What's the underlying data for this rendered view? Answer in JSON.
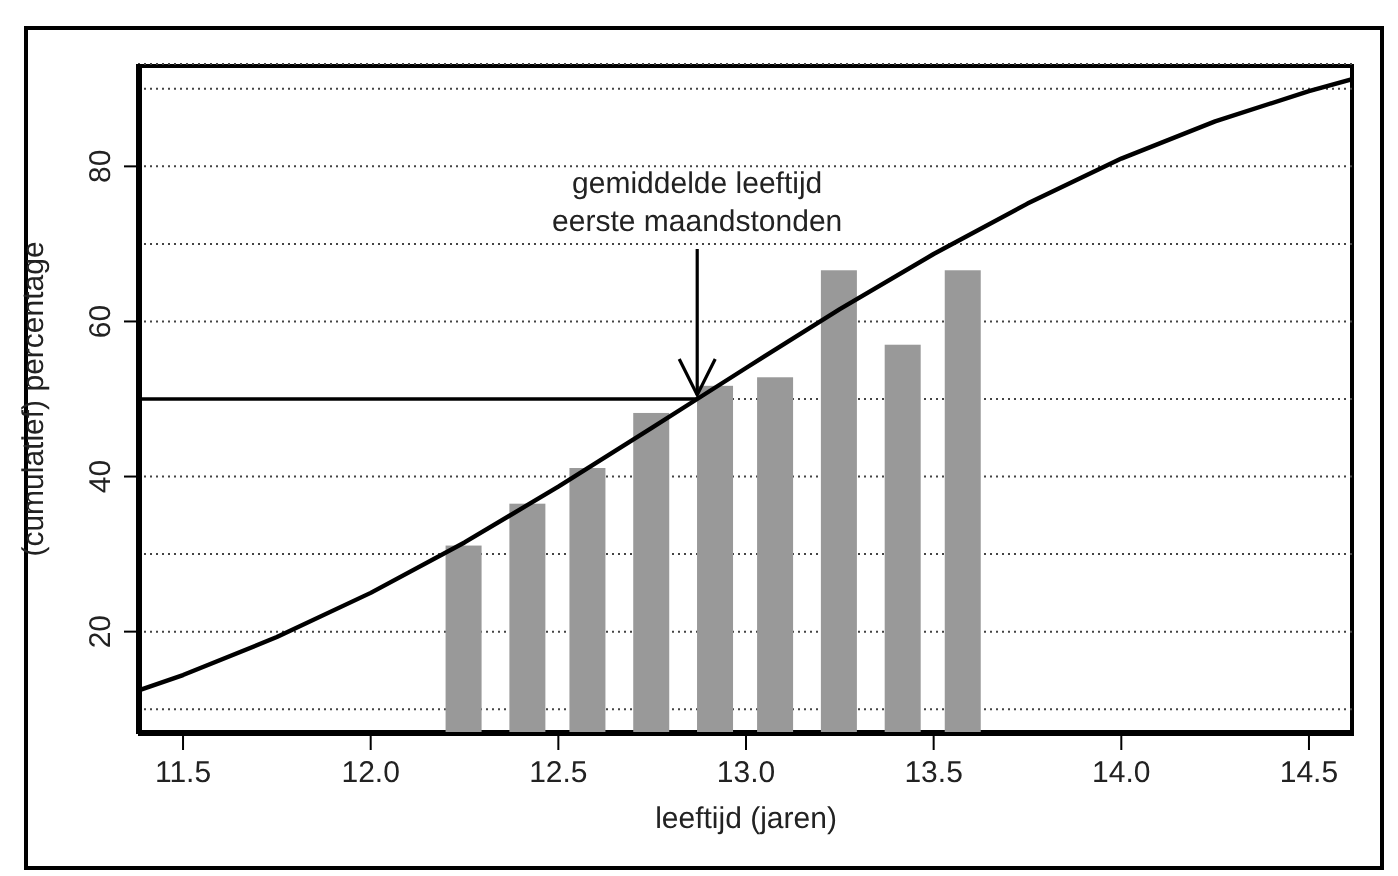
{
  "chart_data": {
    "type": "bar",
    "xlabel": "leeftijd (jaren)",
    "ylabel": "(cumulatief) percentage",
    "xlim": [
      11.38,
      14.62
    ],
    "xticks": [
      11.5,
      {
        "value": 12,
        "label": "12.0"
      },
      12.5,
      {
        "value": 13,
        "label": "13.0"
      },
      13.5,
      {
        "value": 14,
        "label": "14.0"
      },
      14.5
    ],
    "ylim": [
      6.8,
      93.2
    ],
    "yticks": [
      {
        "value": 10,
        "label": null
      },
      20,
      {
        "value": 30,
        "label": null
      },
      40,
      {
        "value": 50,
        "label": null
      },
      60,
      {
        "value": 70,
        "label": null
      },
      80,
      {
        "value": 90,
        "label": null
      }
    ],
    "grid": "y",
    "marker": "none",
    "line_style": "solid",
    "series": [
      {
        "color": "#999999",
        "x": [
          12.25,
          12.42,
          12.58,
          12.75,
          12.92,
          13.08,
          13.25,
          13.42,
          13.58
        ],
        "values": [
          31.1,
          36.5,
          41.1,
          48.2,
          51.7,
          52.8,
          66.6,
          57.0,
          66.6
        ]
      },
      {
        "type": "line",
        "color": "#000000",
        "x": [
          11.38,
          11.5,
          11.75,
          12.0,
          12.25,
          12.5,
          12.75,
          12.87,
          13.0,
          13.25,
          13.5,
          13.75,
          14.0,
          14.25,
          14.5,
          14.62
        ],
        "values": [
          12.4,
          14.4,
          19.3,
          25.0,
          31.5,
          38.7,
          46.3,
          50,
          54.0,
          61.6,
          68.7,
          75.2,
          81.0,
          85.8,
          89.7,
          91.3
        ]
      },
      {
        "type": "line",
        "color": "#000000",
        "x": [
          11.38,
          12.87
        ],
        "values": [
          50,
          50
        ]
      }
    ],
    "annotations": [
      {
        "text": "gemiddelde leeftijd\neerste maandstonden",
        "x": 12.87,
        "y": 50
      }
    ]
  }
}
